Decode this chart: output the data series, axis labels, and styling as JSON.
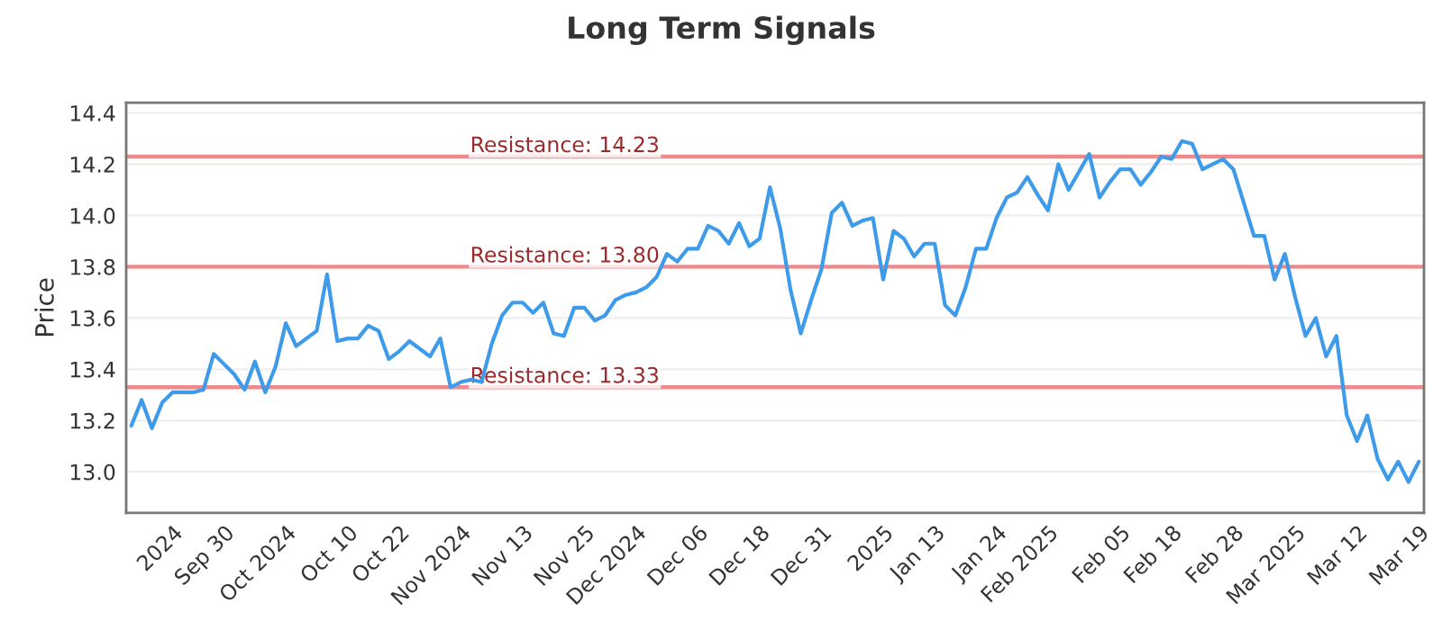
{
  "chart_data": {
    "type": "line",
    "title": "Long Term Signals",
    "ylabel": "Price",
    "categories": [
      null,
      null,
      null,
      null,
      "2024",
      null,
      null,
      null,
      null,
      "Sep 30",
      null,
      null,
      null,
      null,
      null,
      "Oct 2024",
      null,
      null,
      null,
      null,
      null,
      "Oct 10",
      null,
      null,
      null,
      null,
      "Oct 22",
      null,
      null,
      null,
      null,
      null,
      "Nov 2024",
      null,
      null,
      null,
      null,
      null,
      "Nov 13",
      null,
      null,
      null,
      null,
      null,
      "Nov 25",
      null,
      null,
      null,
      null,
      "Dec 2024",
      null,
      null,
      null,
      null,
      null,
      "Dec 06",
      null,
      null,
      null,
      null,
      null,
      "Dec 18",
      null,
      null,
      null,
      null,
      null,
      "Dec 31",
      null,
      null,
      null,
      null,
      null,
      "2025",
      null,
      null,
      null,
      null,
      "Jan 13",
      null,
      null,
      null,
      null,
      null,
      "Jan 24",
      null,
      null,
      null,
      null,
      "Feb 2025",
      null,
      null,
      null,
      null,
      null,
      null,
      "Feb 05",
      null,
      null,
      null,
      null,
      "Feb 18",
      null,
      null,
      null,
      null,
      null,
      "Feb 28",
      null,
      null,
      null,
      null,
      null,
      "Mar 2025",
      null,
      null,
      null,
      null,
      null,
      "Mar 12",
      null,
      null,
      null,
      null,
      null,
      "Mar 19"
    ],
    "series": [
      {
        "color": "#3d9be9",
        "values": [
          13.18,
          13.28,
          13.17,
          13.27,
          13.31,
          13.31,
          13.31,
          13.32,
          13.46,
          13.42,
          13.38,
          13.32,
          13.43,
          13.31,
          13.41,
          13.58,
          13.49,
          13.52,
          13.55,
          13.77,
          13.51,
          13.52,
          13.52,
          13.57,
          13.55,
          13.44,
          13.47,
          13.51,
          13.48,
          13.45,
          13.52,
          13.33,
          13.35,
          13.36,
          13.35,
          13.5,
          13.61,
          13.66,
          13.66,
          13.62,
          13.66,
          13.54,
          13.53,
          13.64,
          13.64,
          13.59,
          13.61,
          13.67,
          13.69,
          13.7,
          13.72,
          13.76,
          13.85,
          13.82,
          13.87,
          13.87,
          13.96,
          13.94,
          13.89,
          13.97,
          13.88,
          13.91,
          14.11,
          13.95,
          13.71,
          13.54,
          13.67,
          13.79,
          14.01,
          14.05,
          13.96,
          13.98,
          13.99,
          13.75,
          13.94,
          13.91,
          13.84,
          13.89,
          13.89,
          13.65,
          13.61,
          13.72,
          13.87,
          13.87,
          13.99,
          14.07,
          14.09,
          14.15,
          14.08,
          14.02,
          14.2,
          14.1,
          14.17,
          14.24,
          14.07,
          14.13,
          14.18,
          14.18,
          14.12,
          14.17,
          14.23,
          14.22,
          14.29,
          14.28,
          14.18,
          14.2,
          14.22,
          14.18,
          14.05,
          13.92,
          13.92,
          13.75,
          13.85,
          13.68,
          13.53,
          13.6,
          13.45,
          13.53,
          13.22,
          13.12,
          13.22,
          13.05,
          12.97,
          13.04,
          12.96,
          13.04
        ]
      }
    ],
    "ylim": [
      12.84,
      14.44
    ],
    "yticks": [
      {
        "value": 13.0,
        "label": "13.0"
      },
      13.2,
      13.4,
      13.6,
      13.8,
      {
        "value": 14.0,
        "label": "14.0"
      },
      14.2,
      14.4
    ],
    "grid": "y",
    "ref_lines": [
      {
        "axis": "y",
        "value": 14.23,
        "label": "Resistance: 14.23",
        "color": "#ee8a8c"
      },
      {
        "axis": "y",
        "value": 13.8,
        "label": "Resistance: 13.80",
        "color": "#ee8a8c"
      },
      {
        "axis": "y",
        "value": 13.33,
        "label": "Resistance: 13.33",
        "color": "#ee8a8c"
      }
    ]
  }
}
